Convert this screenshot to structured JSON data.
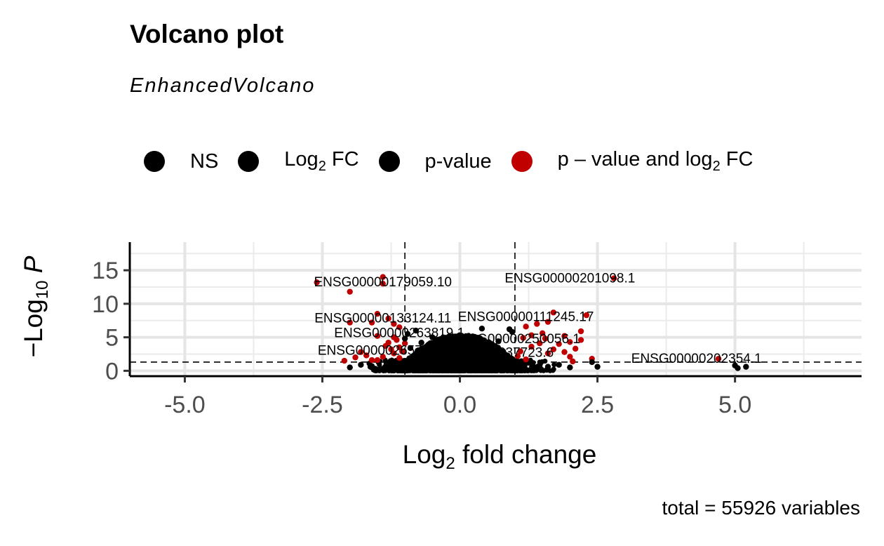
{
  "chart_data": {
    "type": "scatter",
    "title": "Volcano plot",
    "subtitle": "EnhancedVolcano",
    "caption": "total = 55926 variables",
    "xlabel": "Log2 fold change",
    "ylabel": "−Log10 P",
    "xlim": [
      -6.0,
      7.3
    ],
    "ylim": [
      -0.8,
      19.2
    ],
    "x_ticks": [
      -5.0,
      -2.5,
      0.0,
      2.5,
      5.0
    ],
    "x_tick_labels": [
      "-5.0",
      "-2.5",
      "0.0",
      "2.5",
      "5.0"
    ],
    "y_ticks": [
      0,
      5,
      10,
      15
    ],
    "y_tick_labels": [
      "0",
      "5",
      "10",
      "15"
    ],
    "grid": true,
    "legend_position": "top",
    "thresholds": {
      "fc_cutoff": 1.0,
      "p_cutoff_log10": 1.3
    },
    "legend": [
      {
        "key": "NS",
        "label": "NS",
        "color": "#000000"
      },
      {
        "key": "FC",
        "label": "Log2 FC",
        "color": "#000000"
      },
      {
        "key": "P",
        "label": "p-value",
        "color": "#000000"
      },
      {
        "key": "FC_P",
        "label": "p – value and log2 FC",
        "color": "#c00000"
      }
    ],
    "colors": {
      "sig": "#c00000",
      "ns": "#000000"
    },
    "series": [
      {
        "key": "FC_P",
        "points": [
          [
            -2.6,
            13.2
          ],
          [
            -2.0,
            11.8
          ],
          [
            -1.4,
            14.0
          ],
          [
            -1.4,
            13.0
          ],
          [
            -1.5,
            8.5
          ],
          [
            -1.3,
            7.8
          ],
          [
            -1.2,
            7.0
          ],
          [
            -1.1,
            6.5
          ],
          [
            -1.6,
            7.2
          ],
          [
            -2.0,
            7.2
          ],
          [
            -1.5,
            5.2
          ],
          [
            -1.8,
            2.8
          ],
          [
            -1.2,
            5.0
          ],
          [
            -1.1,
            3.5
          ],
          [
            -1.3,
            4.2
          ],
          [
            -1.2,
            2.6
          ],
          [
            -1.9,
            2.0
          ],
          [
            -1.7,
            2.3
          ],
          [
            -1.6,
            1.6
          ],
          [
            -1.4,
            2.1
          ],
          [
            -1.1,
            1.9
          ],
          [
            -1.05,
            2.9
          ],
          [
            -1.25,
            3.2
          ],
          [
            -1.0,
            4.1
          ],
          [
            -2.1,
            1.5
          ],
          [
            -1.5,
            1.6
          ],
          [
            -1.15,
            4.6
          ],
          [
            -1.35,
            3.7
          ],
          [
            2.8,
            13.8
          ],
          [
            2.3,
            8.3
          ],
          [
            1.7,
            8.7
          ],
          [
            1.6,
            7.3
          ],
          [
            1.4,
            7.0
          ],
          [
            1.2,
            6.6
          ],
          [
            1.5,
            5.6
          ],
          [
            1.9,
            5.2
          ],
          [
            2.2,
            5.9
          ],
          [
            2.2,
            4.6
          ],
          [
            2.0,
            4.3
          ],
          [
            1.8,
            4.0
          ],
          [
            2.1,
            3.3
          ],
          [
            1.3,
            3.6
          ],
          [
            1.1,
            2.9
          ],
          [
            1.6,
            2.6
          ],
          [
            2.0,
            2.1
          ],
          [
            2.4,
            1.8
          ],
          [
            1.2,
            1.7
          ],
          [
            1.05,
            2.2
          ],
          [
            1.15,
            4.9
          ],
          [
            1.45,
            4.1
          ],
          [
            1.7,
            3.2
          ],
          [
            1.9,
            2.8
          ],
          [
            1.3,
            5.3
          ],
          [
            1.55,
            4.8
          ],
          [
            2.05,
            1.4
          ],
          [
            4.7,
            1.8
          ]
        ]
      },
      {
        "key": "NS",
        "points": [
          [
            2.5,
            0.6
          ],
          [
            2.4,
            1.3
          ],
          [
            5.0,
            0.8
          ],
          [
            5.2,
            0.6
          ],
          [
            5.05,
            0.4
          ],
          [
            -0.8,
            6.0
          ],
          [
            0.4,
            6.3
          ],
          [
            0.9,
            6.2
          ],
          [
            -0.5,
            5.0
          ],
          [
            -0.2,
            4.5
          ],
          [
            0.3,
            4.8
          ],
          [
            -0.7,
            4.2
          ],
          [
            0.7,
            4.4
          ],
          [
            0.6,
            3.7
          ],
          [
            -0.9,
            3.4
          ],
          [
            -1.6,
            0.7
          ],
          [
            -2.0,
            0.5
          ],
          [
            -1.8,
            0.9
          ],
          [
            1.8,
            0.9
          ],
          [
            2.0,
            0.5
          ],
          [
            1.6,
            0.6
          ],
          [
            -0.95,
            5.5
          ],
          [
            0.95,
            5.8
          ],
          [
            -0.6,
            3.0
          ],
          [
            0.2,
            3.3
          ],
          [
            -0.3,
            3.6
          ],
          [
            0.5,
            2.9
          ],
          [
            -1.0,
            4.8
          ]
        ]
      }
    ],
    "annotations": [
      {
        "text": "ENSG00000179059.10",
        "x": -1.4,
        "y": 12.6
      },
      {
        "text": "ENSG00000201098.1",
        "x": 2.0,
        "y": 13.2
      },
      {
        "text": "ENSG00000133124.11",
        "x": -1.4,
        "y": 7.2
      },
      {
        "text": "ENSG00000111245.17",
        "x": 1.2,
        "y": 7.4
      },
      {
        "text": "ENSG00000263819.1",
        "x": -1.1,
        "y": 5.0
      },
      {
        "text": "ENSG00000250056.1",
        "x": 1.0,
        "y": 4.1
      },
      {
        "text": "ENSG00000265790",
        "x": -1.5,
        "y": 2.4
      },
      {
        "text": "NSG00000237723.6",
        "x": 0.6,
        "y": 2.1
      },
      {
        "text": "ENSG00000202354.1",
        "x": 4.3,
        "y": 1.2
      }
    ]
  }
}
